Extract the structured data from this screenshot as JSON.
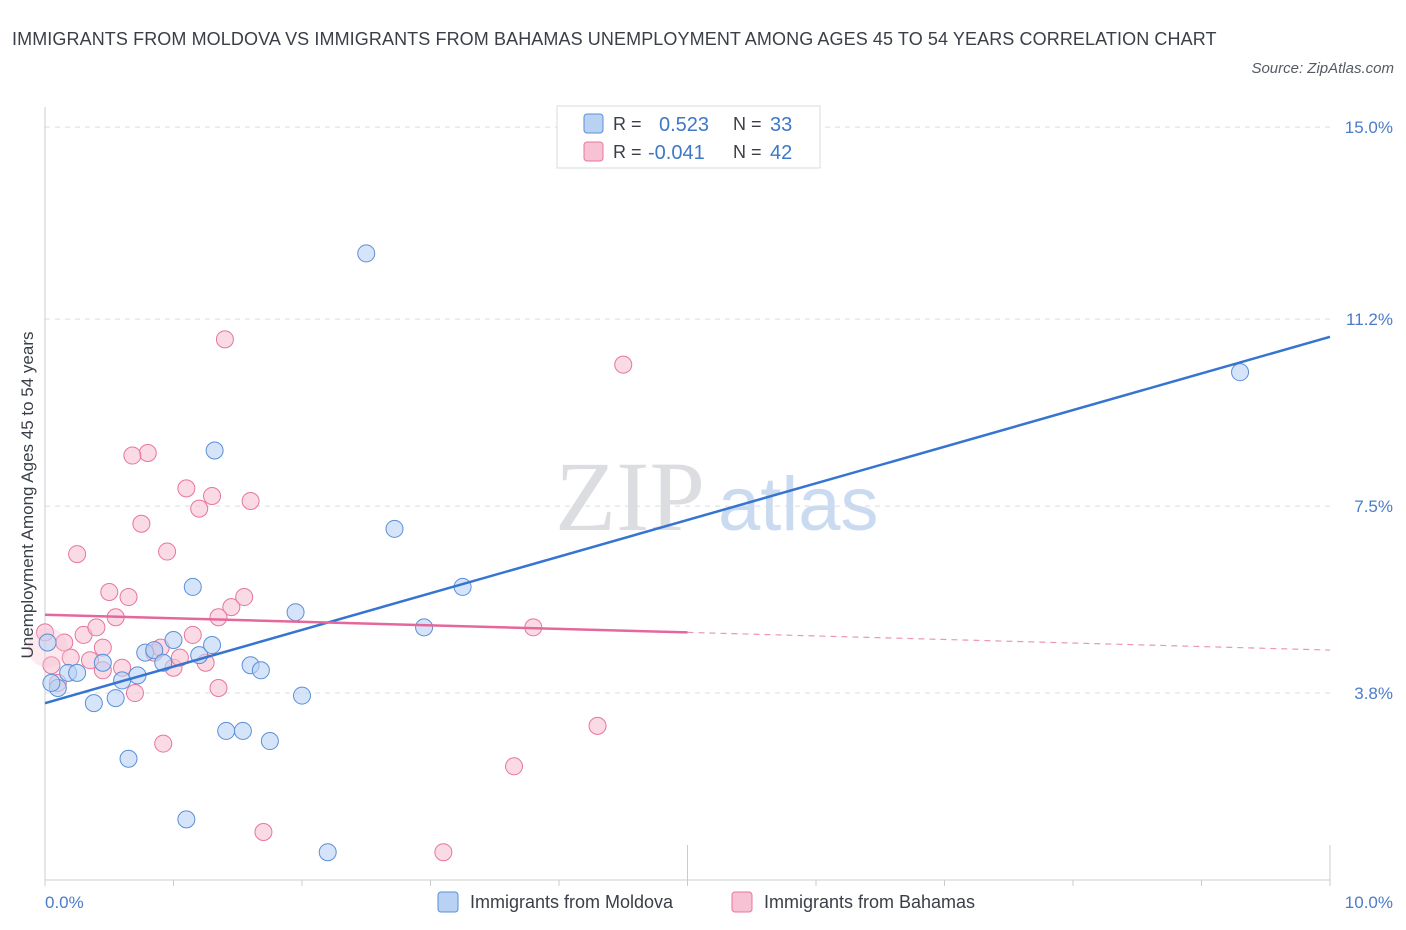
{
  "title": "IMMIGRANTS FROM MOLDOVA VS IMMIGRANTS FROM BAHAMAS UNEMPLOYMENT AMONG AGES 45 TO 54 YEARS CORRELATION CHART",
  "source": "Source: ZipAtlas.com",
  "watermark": {
    "zip": "ZIP",
    "atlas": "atlas"
  },
  "colors": {
    "moldova": "#5b8fd9",
    "moldova_fill": "#b9d2f4",
    "bahamas": "#e8759c",
    "bahamas_fill": "#f7c3d4",
    "line_blue": "#3575d0",
    "line_pink": "#e5689a",
    "tick_blue": "#4a7cc9"
  },
  "legend": {
    "r_label": "R =",
    "n_label": "N =",
    "moldova": {
      "r": "0.523",
      "n": "33"
    },
    "bahamas": {
      "r": "-0.041",
      "n": "42"
    }
  },
  "chart_data": {
    "type": "scatter",
    "title": "IMMIGRANTS FROM MOLDOVA VS IMMIGRANTS FROM BAHAMAS UNEMPLOYMENT AMONG AGES 45 TO 54 YEARS CORRELATION CHART",
    "xlabel": "",
    "ylabel": "Unemployment Among Ages 45 to 54 years",
    "xlim": [
      0,
      10
    ],
    "ylim": [
      0.1,
      15.2
    ],
    "x_tick_labels": [
      "0.0%",
      "10.0%"
    ],
    "y_ticks": [
      {
        "value": 3.8,
        "label": "3.8%"
      },
      {
        "value": 7.5,
        "label": "7.5%"
      },
      {
        "value": 11.2,
        "label": "11.2%"
      },
      {
        "value": 15.0,
        "label": "15.0%"
      }
    ],
    "series": [
      {
        "name": "Immigrants from Moldova",
        "r": 0.523,
        "n": 33,
        "points": [
          [
            0.02,
            4.8
          ],
          [
            0.1,
            3.9
          ],
          [
            0.18,
            4.2
          ],
          [
            0.25,
            4.2
          ],
          [
            0.38,
            3.6
          ],
          [
            0.45,
            4.4
          ],
          [
            0.55,
            3.7
          ],
          [
            0.6,
            4.05
          ],
          [
            0.65,
            2.5
          ],
          [
            0.72,
            4.15
          ],
          [
            0.78,
            4.6
          ],
          [
            0.85,
            4.65
          ],
          [
            0.92,
            4.4
          ],
          [
            1.0,
            4.85
          ],
          [
            1.1,
            1.3
          ],
          [
            1.15,
            5.9
          ],
          [
            1.2,
            4.55
          ],
          [
            1.3,
            4.75
          ],
          [
            1.32,
            8.6
          ],
          [
            1.41,
            3.05
          ],
          [
            1.54,
            3.05
          ],
          [
            1.6,
            4.35
          ],
          [
            1.68,
            4.25
          ],
          [
            1.75,
            2.85
          ],
          [
            1.95,
            5.4
          ],
          [
            2.0,
            3.75
          ],
          [
            2.2,
            0.65
          ],
          [
            2.5,
            12.5
          ],
          [
            2.72,
            7.05
          ],
          [
            2.95,
            5.1
          ],
          [
            3.25,
            5.9
          ],
          [
            9.3,
            10.15
          ],
          [
            0.05,
            4.0
          ]
        ],
        "trend": {
          "x0": 0.0,
          "y0": 3.6,
          "x1": 10.0,
          "y1": 10.85
        }
      },
      {
        "name": "Immigrants from Bahamas",
        "r": -0.041,
        "n": 42,
        "points": [
          [
            0.0,
            5.0
          ],
          [
            0.05,
            4.35
          ],
          [
            0.1,
            4.0
          ],
          [
            0.15,
            4.8
          ],
          [
            0.2,
            4.5
          ],
          [
            0.25,
            6.55
          ],
          [
            0.3,
            4.95
          ],
          [
            0.35,
            4.45
          ],
          [
            0.4,
            5.1
          ],
          [
            0.45,
            4.7
          ],
          [
            0.5,
            5.8
          ],
          [
            0.55,
            5.3
          ],
          [
            0.6,
            4.3
          ],
          [
            0.65,
            5.7
          ],
          [
            0.7,
            3.8
          ],
          [
            0.75,
            7.15
          ],
          [
            0.8,
            8.55
          ],
          [
            0.85,
            4.6
          ],
          [
            0.9,
            4.7
          ],
          [
            0.95,
            6.6
          ],
          [
            1.0,
            4.3
          ],
          [
            1.05,
            4.5
          ],
          [
            1.1,
            7.85
          ],
          [
            1.15,
            4.95
          ],
          [
            1.2,
            7.45
          ],
          [
            1.25,
            4.4
          ],
          [
            1.3,
            7.7
          ],
          [
            1.35,
            3.9
          ],
          [
            1.4,
            10.8
          ],
          [
            1.45,
            5.5
          ],
          [
            1.55,
            5.7
          ],
          [
            1.6,
            7.6
          ],
          [
            1.7,
            1.05
          ],
          [
            0.68,
            8.5
          ],
          [
            0.45,
            4.25
          ],
          [
            0.92,
            2.8
          ],
          [
            1.35,
            5.3
          ],
          [
            3.1,
            0.65
          ],
          [
            3.65,
            2.35
          ],
          [
            3.8,
            5.1
          ],
          [
            4.3,
            3.15
          ],
          [
            4.5,
            10.3
          ]
        ],
        "trend": {
          "x0": 0.0,
          "y0": 5.35,
          "x1": 5.0,
          "y1": 5.0,
          "dash_x1": 10.0,
          "dash_y1": 4.65
        }
      }
    ]
  }
}
